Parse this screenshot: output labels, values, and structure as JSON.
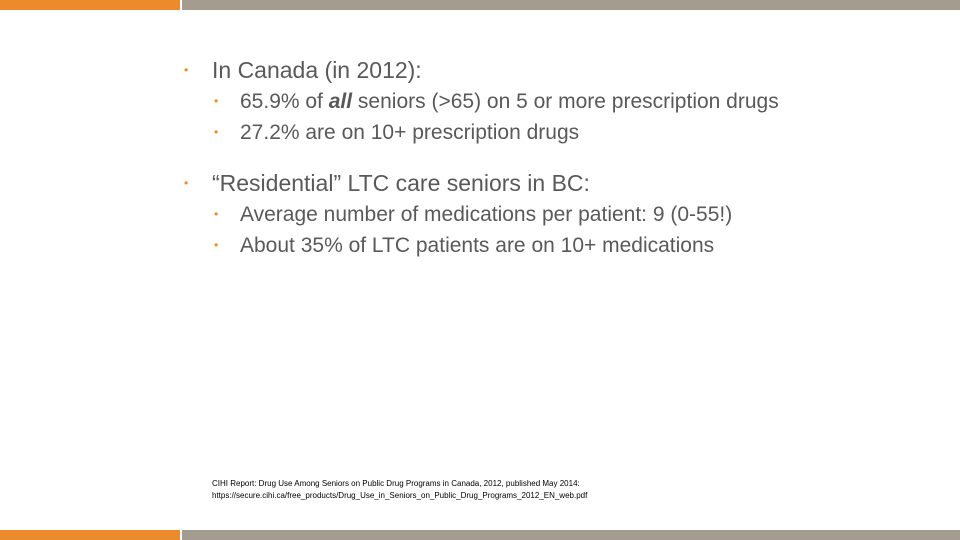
{
  "colors": {
    "accent_orange": "#ec8a2c",
    "bar_gray": "#a49d8f",
    "text_gray": "#595959",
    "bullet_color": "#ec8a2c"
  },
  "slide": {
    "bullet_glyph": "•",
    "sections": [
      {
        "heading": "In Canada (in 2012):",
        "items": [
          {
            "before": " 65.9% of ",
            "emph": "all",
            "after": " seniors (>65) on 5 or more prescription drugs"
          },
          {
            "text": "27.2% are on 10+ prescription drugs"
          }
        ]
      },
      {
        "heading": "“Residential” LTC care seniors in BC:",
        "items": [
          {
            "text": "Average number of medications per patient: 9 (0-55!)"
          },
          {
            "text": "About 35% of LTC patients are on 10+ medications"
          }
        ]
      }
    ],
    "footnote": {
      "line1": "CIHI Report: Drug Use Among Seniors on Public Drug Programs in Canada, 2012, published May 2014:",
      "line2": "https://secure.cihi.ca/free_products/Drug_Use_in_Seniors_on_Public_Drug_Programs_2012_EN_web.pdf"
    }
  }
}
